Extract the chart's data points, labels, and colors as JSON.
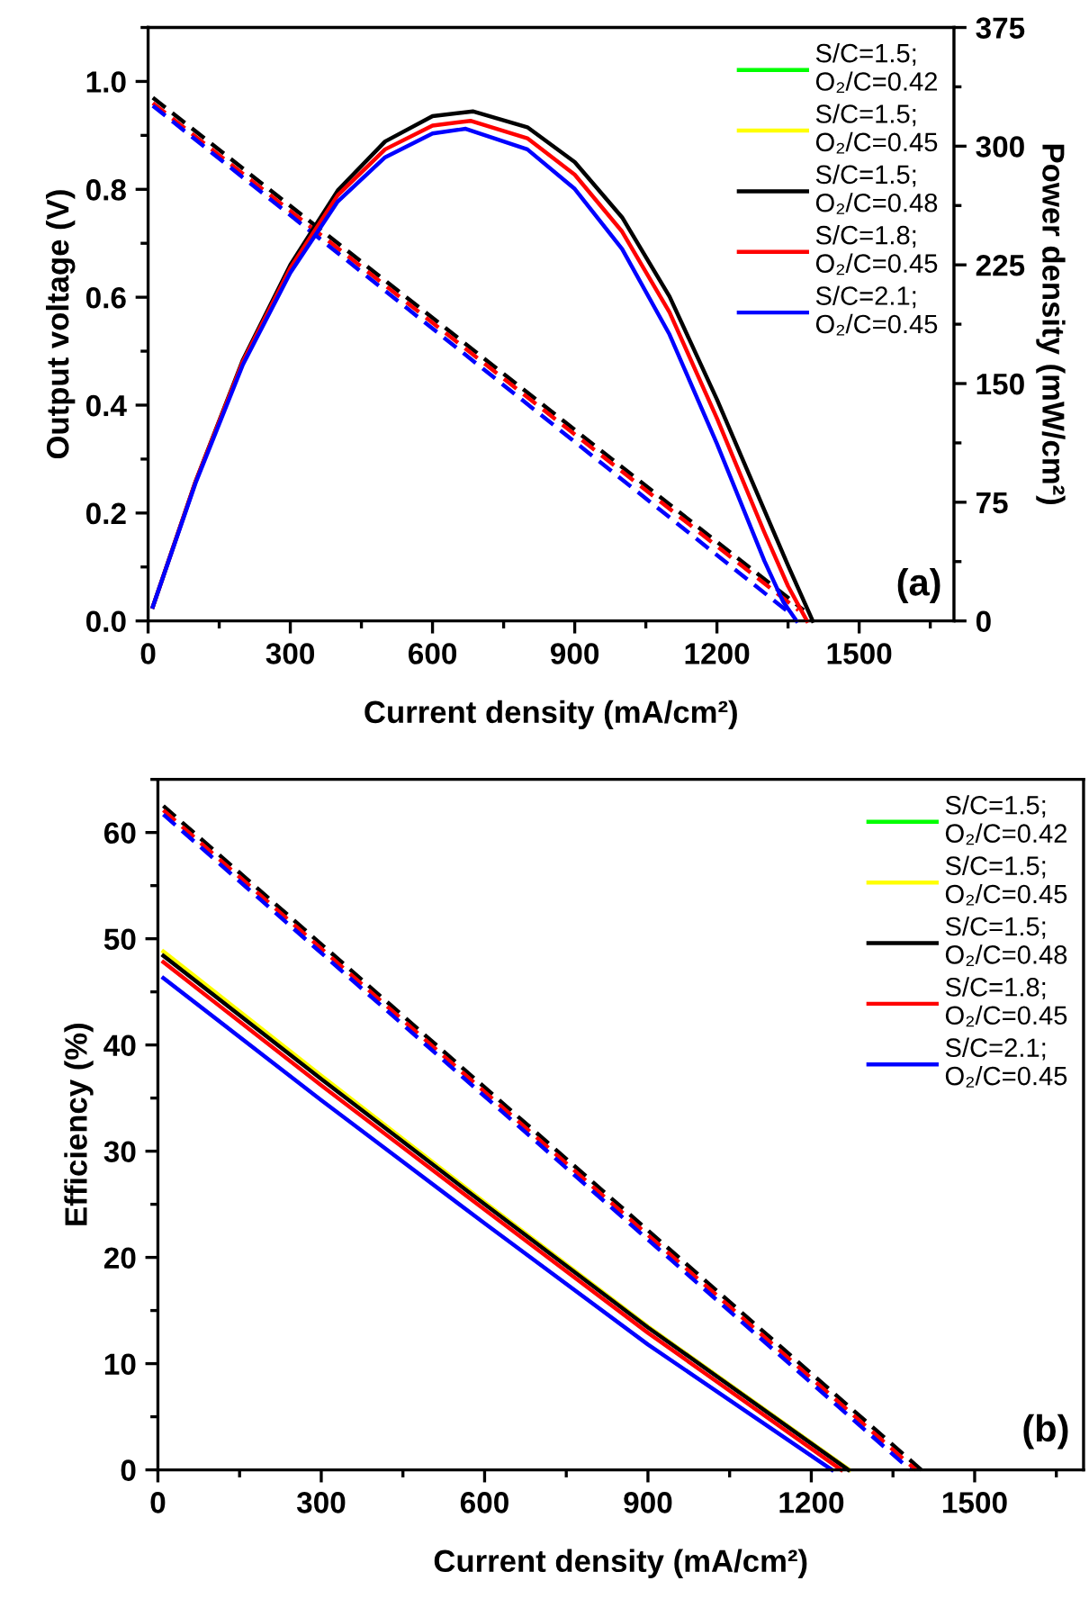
{
  "chart_data": [
    {
      "type": "line",
      "xlabel": "Current density (mA/cm²)",
      "ylabel": "Output voltage (V)",
      "y2label": "Power density (mW/cm²)",
      "xlim": [
        0,
        1700
      ],
      "xticks": [
        0,
        300,
        600,
        900,
        1200,
        1500
      ],
      "ylim": [
        0,
        1.1
      ],
      "yticks": [
        {
          "value": 0,
          "label": "0.0"
        },
        0.2,
        0.4,
        0.6,
        0.8,
        {
          "value": 1,
          "label": "1.0"
        }
      ],
      "y2lim": [
        0,
        375
      ],
      "y2ticks": [
        0,
        75,
        150,
        225,
        300,
        375
      ],
      "legend": "top right",
      "annotations": [
        "(a)"
      ],
      "series": [
        {
          "name": "S/C=1.5;\nO₂/C=0.42",
          "color": "#00ff00",
          "axis": "y2",
          "line_style": "solid"
        },
        {
          "name": "S/C=1.5;\nO₂/C=0.45",
          "color": "#ffff00",
          "axis": "y2",
          "line_style": "solid"
        },
        {
          "name": "S/C=1.5;\nO₂/C=0.48",
          "color": "#000000",
          "axis": "y2",
          "line_style": "solid",
          "x": [
            10,
            100,
            200,
            300,
            400,
            500,
            600,
            685,
            800,
            900,
            1000,
            1100,
            1200,
            1300,
            1350,
            1402
          ],
          "values": [
            9,
            88,
            165,
            225,
            272,
            303,
            319,
            322,
            312,
            290,
            255,
            205,
            140,
            70,
            35,
            0
          ]
        },
        {
          "name": "S/C=1.8;\nO₂/C=0.45",
          "color": "#ff0000",
          "axis": "y2",
          "line_style": "solid",
          "x": [
            10,
            100,
            200,
            300,
            400,
            500,
            600,
            680,
            800,
            900,
            1000,
            1100,
            1200,
            1300,
            1350,
            1390
          ],
          "values": [
            9,
            88,
            164,
            223,
            269,
            298,
            313,
            316,
            305,
            282,
            246,
            195,
            128,
            56,
            22,
            0
          ]
        },
        {
          "name": "S/C=2.1;\nO₂/C=0.45",
          "color": "#0000ff",
          "axis": "y2",
          "line_style": "solid",
          "x": [
            10,
            100,
            200,
            300,
            400,
            500,
            600,
            670,
            800,
            900,
            1000,
            1100,
            1200,
            1300,
            1340,
            1368
          ],
          "values": [
            9,
            87,
            162,
            220,
            265,
            293,
            308,
            311,
            298,
            273,
            235,
            181,
            112,
            38,
            12,
            0
          ]
        },
        {
          "color": "#000000",
          "axis": "y",
          "line_style": "dashed",
          "x": [
            10,
            1383
          ],
          "values": [
            0.97,
            0.02
          ]
        },
        {
          "color": "#ff0000",
          "axis": "y",
          "line_style": "dashed",
          "x": [
            10,
            1372
          ],
          "values": [
            0.96,
            0.02
          ]
        },
        {
          "color": "#0000ff",
          "axis": "y",
          "line_style": "dashed",
          "x": [
            10,
            1360
          ],
          "values": [
            0.955,
            0.01
          ]
        }
      ]
    },
    {
      "type": "line",
      "xlabel": "Current density (mA/cm²)",
      "ylabel": "Efficiency (%)",
      "xlim": [
        0,
        1700
      ],
      "xticks": [
        0,
        300,
        600,
        900,
        1200,
        1500
      ],
      "ylim": [
        0,
        65
      ],
      "yticks": [
        0,
        10,
        20,
        30,
        40,
        50,
        60
      ],
      "legend": "top right",
      "annotations": [
        "(b)"
      ],
      "series": [
        {
          "name": "S/C=1.5;\nO₂/C=0.42",
          "color": "#00ff00",
          "line_style": "solid"
        },
        {
          "name": "S/C=1.5;\nO₂/C=0.45",
          "color": "#ffff00",
          "line_style": "solid",
          "x": [
            10,
            300,
            600,
            900,
            1270
          ],
          "values": [
            48.8,
            37.1,
            25.2,
            13.5,
            0
          ]
        },
        {
          "name": "S/C=1.5;\nO₂/C=0.48",
          "color": "#000000",
          "line_style": "solid",
          "x": [
            10,
            300,
            600,
            900,
            1268
          ],
          "values": [
            48.4,
            36.8,
            25.0,
            13.4,
            0
          ]
        },
        {
          "name": "S/C=1.8;\nO₂/C=0.45",
          "color": "#ff0000",
          "line_style": "solid",
          "x": [
            10,
            300,
            600,
            900,
            1255
          ],
          "values": [
            47.8,
            36.2,
            24.5,
            12.9,
            0
          ]
        },
        {
          "name": "S/C=2.1;\nO₂/C=0.45",
          "color": "#0000ff",
          "line_style": "solid",
          "x": [
            10,
            300,
            600,
            900,
            1238
          ],
          "values": [
            46.3,
            34.8,
            23.2,
            11.8,
            0
          ]
        },
        {
          "color": "#000000",
          "line_style": "dashed",
          "x": [
            10,
            1402
          ],
          "values": [
            62.5,
            0
          ]
        },
        {
          "color": "#ff0000",
          "line_style": "dashed",
          "x": [
            10,
            1392
          ],
          "values": [
            62.1,
            0
          ]
        },
        {
          "color": "#0000ff",
          "line_style": "dashed",
          "x": [
            10,
            1382
          ],
          "values": [
            61.7,
            0
          ]
        }
      ]
    }
  ]
}
